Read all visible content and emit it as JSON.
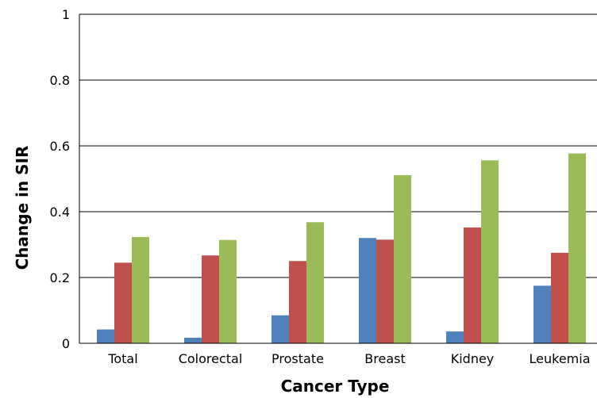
{
  "chart_data": {
    "type": "bar",
    "title": "",
    "xlabel": "Cancer Type",
    "ylabel": "Change in SIR",
    "categories": [
      "Total",
      "Colorectal",
      "Prostate",
      "Breast",
      "Kidney",
      "Leukemia"
    ],
    "series": [
      {
        "color": "#4f81bd",
        "values": [
          0.042,
          0.017,
          0.085,
          0.32,
          0.036,
          0.175
        ]
      },
      {
        "color": "#c0504d",
        "values": [
          0.245,
          0.267,
          0.25,
          0.315,
          0.352,
          0.275
        ]
      },
      {
        "color": "#9bbb59",
        "values": [
          0.323,
          0.314,
          0.368,
          0.511,
          0.556,
          0.577
        ]
      }
    ],
    "yticks": [
      "0",
      "0.2",
      "0.4",
      "0.6",
      "0.8",
      "1"
    ],
    "ylim": [
      0,
      1
    ],
    "grid": true,
    "legend": "none"
  }
}
